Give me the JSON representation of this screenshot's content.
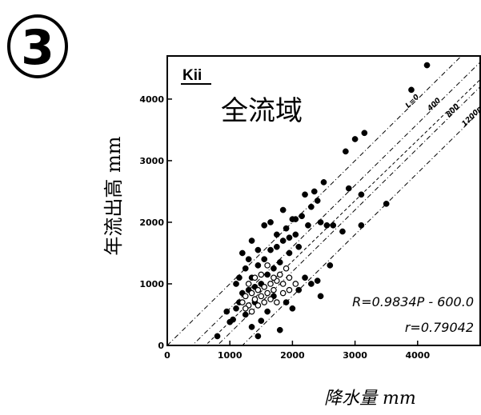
{
  "chart_data": {
    "type": "scatter",
    "panel_label": "Kii",
    "title": "全流域",
    "figure_number": "3",
    "xlabel": "降水量 mm",
    "ylabel": "年流出高 mm",
    "xlim": [
      0,
      5000
    ],
    "ylim": [
      0,
      4700
    ],
    "x_ticks": [
      0,
      1000,
      2000,
      3000,
      4000
    ],
    "x_tick_labels": [
      "0",
      "1000",
      "2000",
      "3000",
      "4000"
    ],
    "y_ticks": [
      0,
      1000,
      2000,
      3000,
      4000
    ],
    "y_tick_labels": [
      "0",
      "1000",
      "2000",
      "3000",
      "4000"
    ],
    "equation": "R=0.9834P - 600.0",
    "correlation": "r=0.79042",
    "reference_lines": [
      {
        "label": "L=0",
        "loss": 0
      },
      {
        "label": "400",
        "loss": 400
      },
      {
        "label": "800",
        "loss": 800
      },
      {
        "label": "1200mm",
        "loss": 1200
      }
    ],
    "regression": {
      "slope": 0.9834,
      "intercept": -600.0
    },
    "grid": false,
    "series": [
      {
        "marker": "filled",
        "points": [
          [
            800,
            150
          ],
          [
            950,
            550
          ],
          [
            1000,
            380
          ],
          [
            1050,
            420
          ],
          [
            1100,
            600
          ],
          [
            1150,
            700
          ],
          [
            1200,
            850
          ],
          [
            1250,
            500
          ],
          [
            1300,
            900
          ],
          [
            1350,
            1100
          ],
          [
            1400,
            950
          ],
          [
            1450,
            1300
          ],
          [
            1500,
            1000
          ],
          [
            1550,
            1400
          ],
          [
            1600,
            1150
          ],
          [
            1650,
            1550
          ],
          [
            1700,
            1250
          ],
          [
            1750,
            1600
          ],
          [
            1800,
            1350
          ],
          [
            1850,
            1700
          ],
          [
            1900,
            1900
          ],
          [
            1950,
            1500
          ],
          [
            2000,
            2050
          ],
          [
            2050,
            1800
          ],
          [
            2100,
            1600
          ],
          [
            2150,
            2100
          ],
          [
            2200,
            2450
          ],
          [
            2250,
            1950
          ],
          [
            2300,
            2250
          ],
          [
            2350,
            2500
          ],
          [
            2400,
            2350
          ],
          [
            2450,
            2000
          ],
          [
            2500,
            2650
          ],
          [
            2550,
            1950
          ],
          [
            2600,
            1300
          ],
          [
            1250,
            1250
          ],
          [
            1300,
            1400
          ],
          [
            1350,
            1700
          ],
          [
            1150,
            1100
          ],
          [
            1200,
            1500
          ],
          [
            1400,
            700
          ],
          [
            1500,
            400
          ],
          [
            1600,
            550
          ],
          [
            1700,
            800
          ],
          [
            1900,
            700
          ],
          [
            2000,
            600
          ],
          [
            2100,
            900
          ],
          [
            2200,
            1100
          ],
          [
            2300,
            1000
          ],
          [
            2400,
            1050
          ],
          [
            2450,
            800
          ],
          [
            1100,
            1000
          ],
          [
            1450,
            1550
          ],
          [
            1550,
            1950
          ],
          [
            1650,
            2000
          ],
          [
            1750,
            1800
          ],
          [
            1850,
            2200
          ],
          [
            1950,
            1750
          ],
          [
            2050,
            2050
          ],
          [
            2850,
            3150
          ],
          [
            3000,
            3350
          ],
          [
            3150,
            3450
          ],
          [
            3100,
            2450
          ],
          [
            3500,
            2300
          ],
          [
            3900,
            4150
          ],
          [
            4150,
            4550
          ],
          [
            2900,
            2550
          ],
          [
            3100,
            1950
          ],
          [
            2800,
            1850
          ],
          [
            2650,
            1950
          ],
          [
            1800,
            250
          ],
          [
            1450,
            150
          ],
          [
            1350,
            300
          ]
        ]
      },
      {
        "marker": "open",
        "points": [
          [
            1200,
            700
          ],
          [
            1250,
            800
          ],
          [
            1300,
            650
          ],
          [
            1350,
            850
          ],
          [
            1400,
            750
          ],
          [
            1450,
            900
          ],
          [
            1500,
            800
          ],
          [
            1550,
            950
          ],
          [
            1600,
            850
          ],
          [
            1650,
            1000
          ],
          [
            1700,
            900
          ],
          [
            1750,
            1050
          ],
          [
            1800,
            1150
          ],
          [
            1850,
            1000
          ],
          [
            1900,
            1250
          ],
          [
            1300,
            1000
          ],
          [
            1400,
            1100
          ],
          [
            1500,
            1150
          ],
          [
            1600,
            1300
          ],
          [
            1700,
            1100
          ],
          [
            1250,
            600
          ],
          [
            1350,
            550
          ],
          [
            1450,
            650
          ],
          [
            1550,
            700
          ],
          [
            1650,
            750
          ],
          [
            1750,
            700
          ],
          [
            1850,
            850
          ],
          [
            1950,
            900
          ],
          [
            2050,
            1000
          ],
          [
            1950,
            1100
          ]
        ]
      }
    ]
  }
}
